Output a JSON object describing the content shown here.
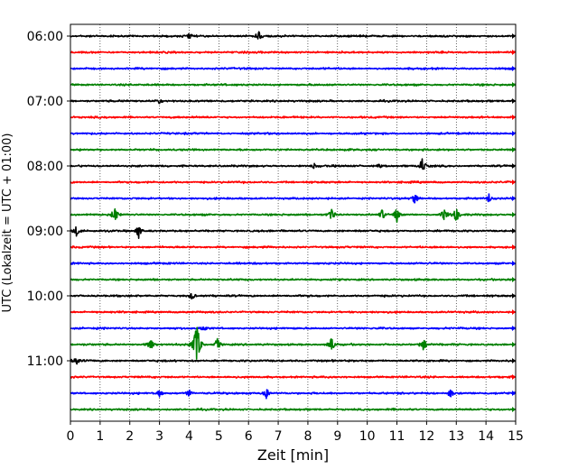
{
  "chart_data": {
    "type": "line",
    "subtype": "helicorder-seismogram",
    "xlabel": "Zeit  [min]",
    "ylabel": "UTC (Lokalzeit = UTC + 01:00)",
    "xlim": [
      0,
      15
    ],
    "x_ticks": [
      0,
      1,
      2,
      3,
      4,
      5,
      6,
      7,
      8,
      9,
      10,
      11,
      12,
      13,
      14,
      15
    ],
    "y_tick_labels": [
      "06:00",
      "07:00",
      "08:00",
      "09:00",
      "10:00",
      "11:00"
    ],
    "trace_minutes": 15,
    "start_time": "06:00",
    "trace_count": 24,
    "trace_colors": [
      "#000000",
      "#ff0000",
      "#0000ff",
      "#008000"
    ],
    "vertical_grid": "dotted",
    "events": [
      {
        "trace": 0,
        "minute": 6.35,
        "amp": 1.1
      },
      {
        "trace": 0,
        "minute": 4.0,
        "amp": 0.6
      },
      {
        "trace": 4,
        "minute": 3.0,
        "amp": 0.5
      },
      {
        "trace": 8,
        "minute": 11.85,
        "amp": 1.5
      },
      {
        "trace": 8,
        "minute": 8.2,
        "amp": 0.6
      },
      {
        "trace": 8,
        "minute": 10.4,
        "amp": 0.5
      },
      {
        "trace": 10,
        "minute": 11.6,
        "amp": 1.1
      },
      {
        "trace": 10,
        "minute": 14.1,
        "amp": 0.8
      },
      {
        "trace": 11,
        "minute": 1.5,
        "amp": 1.6
      },
      {
        "trace": 11,
        "minute": 8.8,
        "amp": 1.3
      },
      {
        "trace": 11,
        "minute": 10.5,
        "amp": 1.1
      },
      {
        "trace": 11,
        "minute": 11.0,
        "amp": 1.3
      },
      {
        "trace": 11,
        "minute": 12.6,
        "amp": 1.2
      },
      {
        "trace": 11,
        "minute": 13.0,
        "amp": 1.6
      },
      {
        "trace": 12,
        "minute": 0.2,
        "amp": 1.0
      },
      {
        "trace": 12,
        "minute": 2.3,
        "amp": 1.3
      },
      {
        "trace": 16,
        "minute": 4.1,
        "amp": 0.7
      },
      {
        "trace": 18,
        "minute": 4.5,
        "amp": 0.5
      },
      {
        "trace": 19,
        "minute": 4.25,
        "amp": 5.0
      },
      {
        "trace": 19,
        "minute": 2.7,
        "amp": 1.3
      },
      {
        "trace": 19,
        "minute": 4.95,
        "amp": 1.2
      },
      {
        "trace": 19,
        "minute": 8.8,
        "amp": 1.4
      },
      {
        "trace": 19,
        "minute": 11.9,
        "amp": 1.2
      },
      {
        "trace": 20,
        "minute": 0.2,
        "amp": 0.8
      },
      {
        "trace": 22,
        "minute": 3.0,
        "amp": 0.7
      },
      {
        "trace": 22,
        "minute": 4.0,
        "amp": 0.8
      },
      {
        "trace": 22,
        "minute": 6.6,
        "amp": 1.0
      },
      {
        "trace": 22,
        "minute": 12.8,
        "amp": 0.9
      }
    ]
  }
}
